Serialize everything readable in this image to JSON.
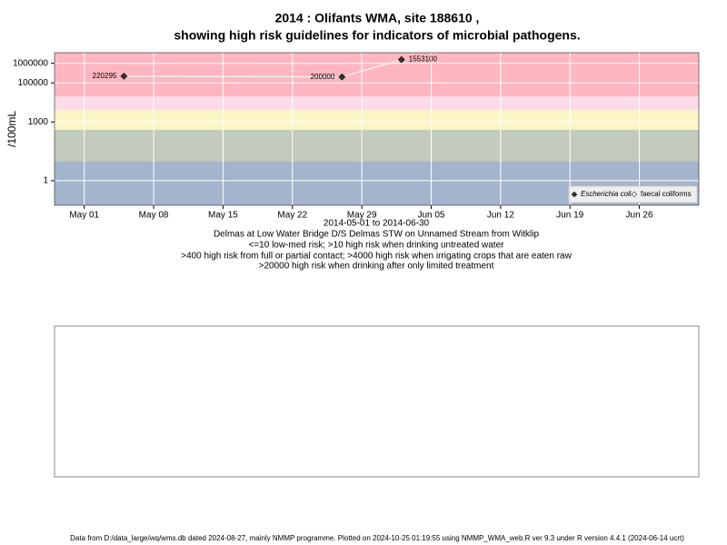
{
  "chart_data": {
    "type": "scatter",
    "title": "2014 : Olifants WMA, site 188610 ,",
    "subtitle": "showing high risk guidelines for indicators of microbial pathogens.",
    "y_label": "/100mL",
    "x_label": "2014-05-01 to 2014-06-30",
    "annotations": [
      "Delmas at Low Water Bridge D/S Delmas STW on Unnamed Stream from Witklip",
      "<=10 low-med risk; >10 high risk when drinking untreated water",
      ">400 high risk from full or partial contact; >4000 high risk when irrigating crops that are eaten raw",
      ">20000 high risk when drinking after only limited treatment"
    ],
    "footer": "Data from D:/data_large/wq/wms.db dated 2024-08-27, mainly NMMP programme. Plotted on 2024-10-25 01:19:55 using NMMP_WMA_web.R ver 9.3 under R version 4.4.1 (2024-06-14 ucrt)",
    "x": [
      "2014-05-05",
      "2014-05-27",
      "2014-06-02"
    ],
    "series": [
      {
        "name": "Escherichia coli",
        "color": "#333333",
        "values": [
          220295,
          200000,
          1553100
        ]
      },
      {
        "name": "faecal coliforms",
        "color": "#ffffff",
        "values": [
          null,
          null,
          null
        ]
      }
    ],
    "log_y": true,
    "ylim": [
      0.055,
      3500000
    ],
    "yticks": [
      1,
      1000,
      100000,
      1000000
    ],
    "xlim": [
      "2014-04-28",
      "2014-07-02"
    ],
    "xticks": [
      {
        "value": "2014-05-01",
        "label": "May 01"
      },
      {
        "value": "2014-05-08",
        "label": "May 08"
      },
      {
        "value": "2014-05-15",
        "label": "May 15"
      },
      {
        "value": "2014-05-22",
        "label": "May 22"
      },
      {
        "value": "2014-05-29",
        "label": "May 29"
      },
      {
        "value": "2014-06-05",
        "label": "Jun 05"
      },
      {
        "value": "2014-06-12",
        "label": "Jun 12"
      },
      {
        "value": "2014-06-19",
        "label": "Jun 19"
      },
      {
        "value": "2014-06-26",
        "label": "Jun 26"
      }
    ],
    "band_limits": [
      10,
      400,
      4000,
      20000
    ],
    "band_colors": [
      "#a3b4cc",
      "#c2cbbe",
      "#fbf5c6",
      "#fbdce8",
      "#ffb6c1"
    ],
    "grid": true,
    "legend": "bottom-right"
  }
}
